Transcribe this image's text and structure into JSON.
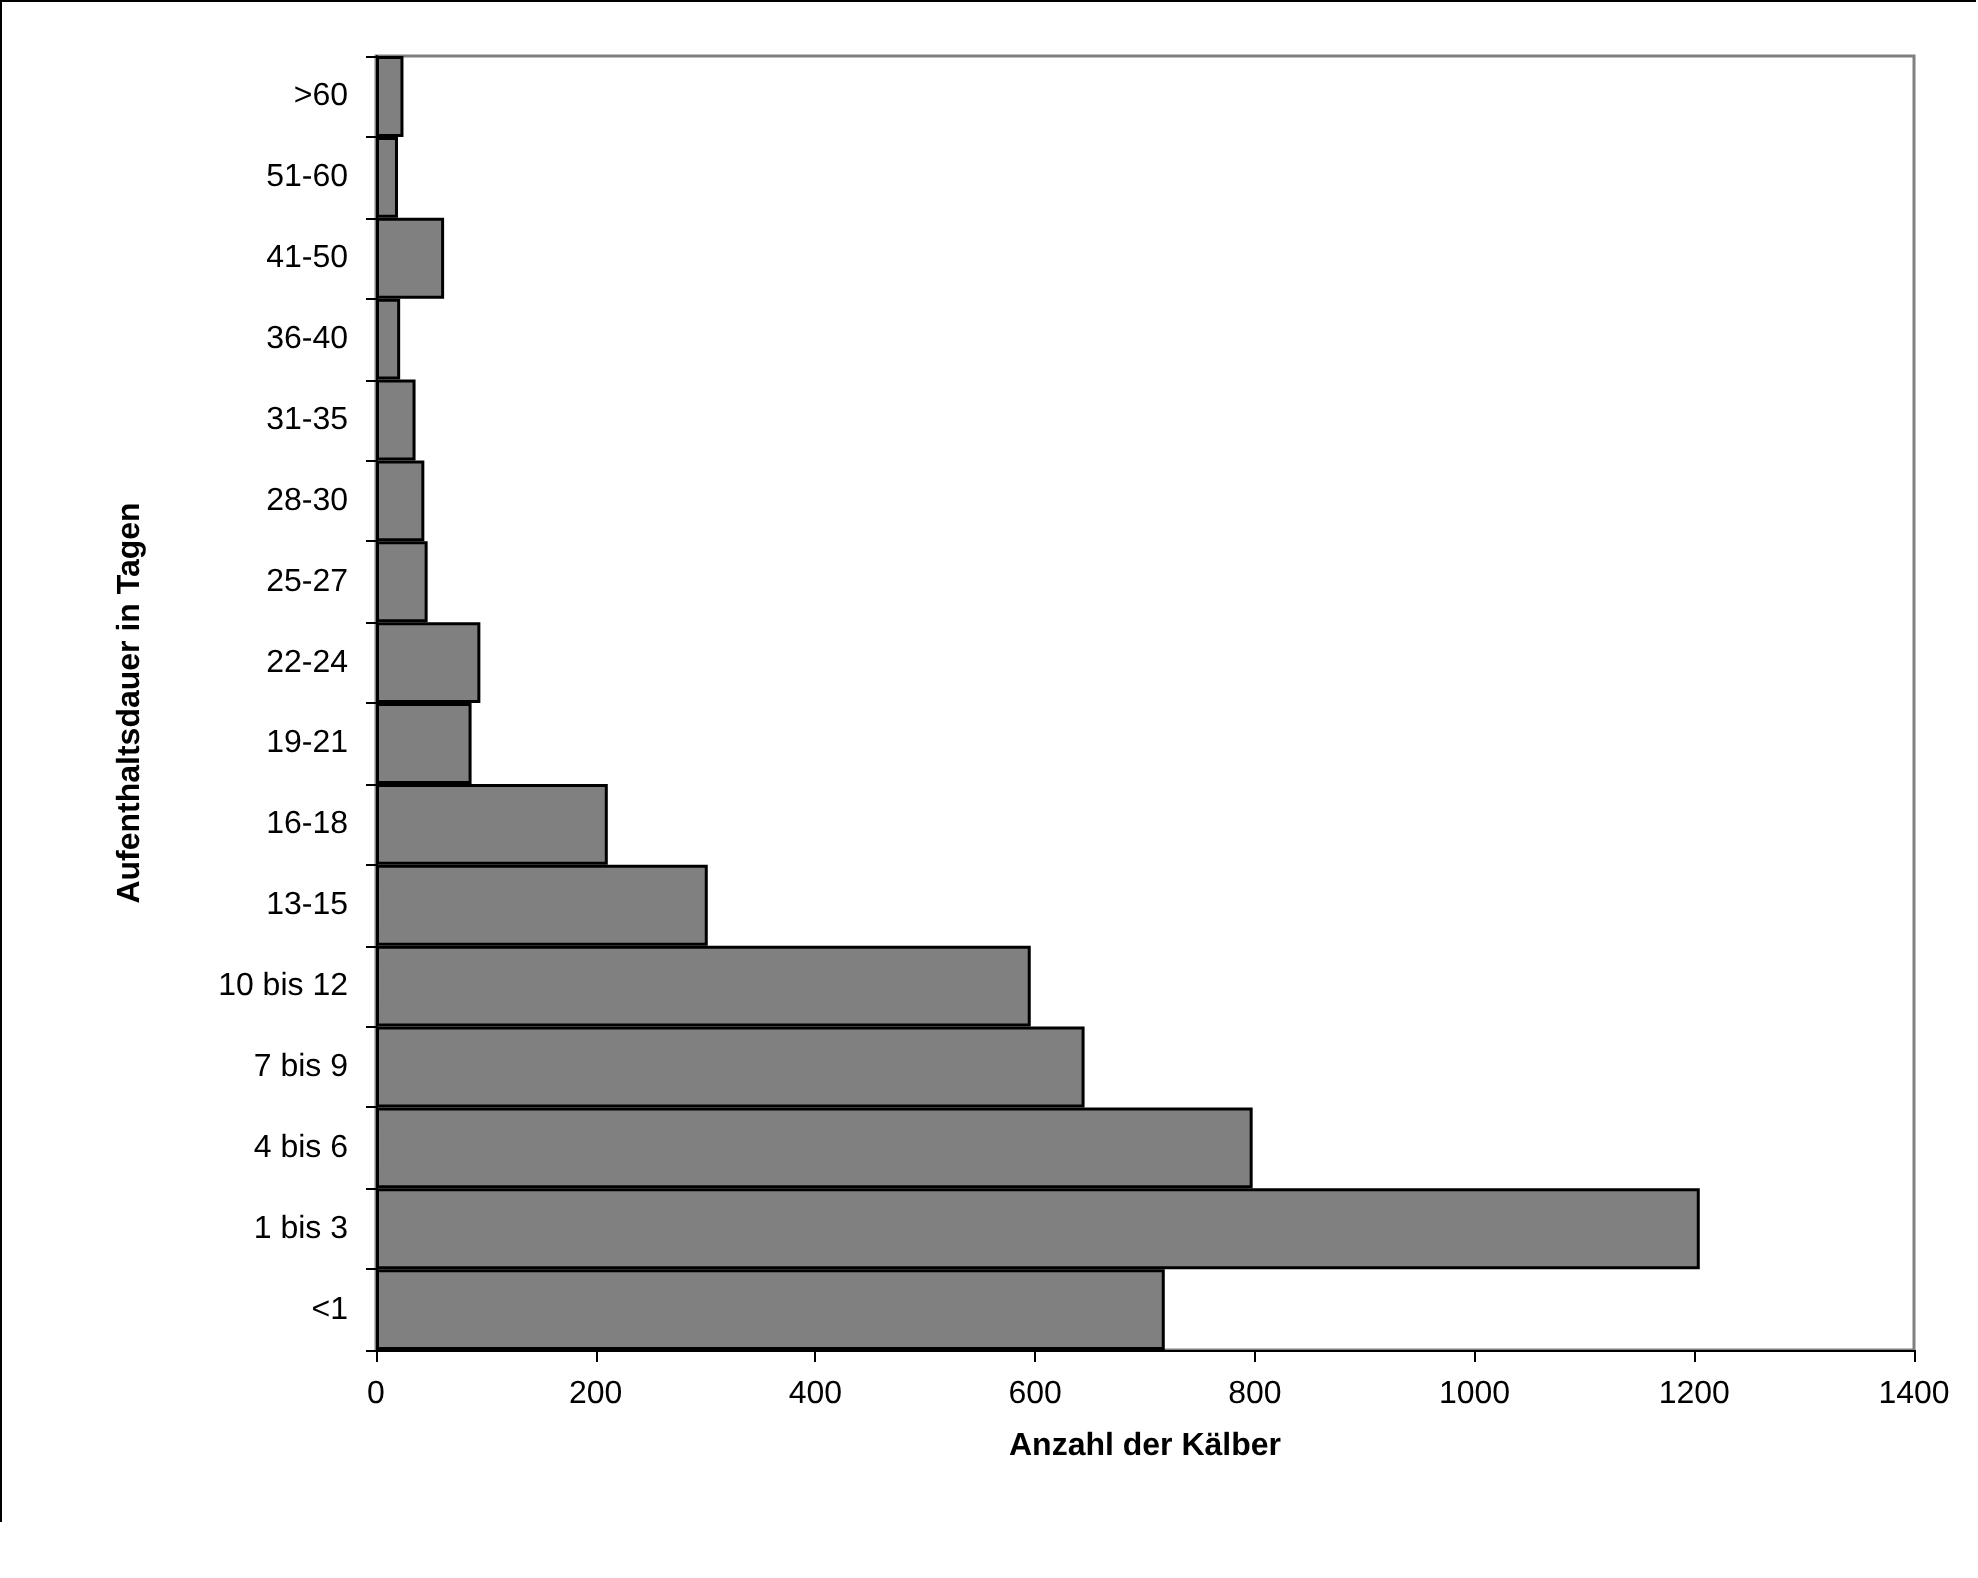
{
  "chart_data": {
    "type": "bar",
    "orientation": "horizontal",
    "xlabel": "Anzahl der Kälber",
    "ylabel": "Aufenthaltsdauer in Tagen",
    "categories": [
      ">60",
      "51-60",
      "41-50",
      "36-40",
      "31-35",
      "28-30",
      "25-27",
      "22-24",
      "19-21",
      "16-18",
      "13-15",
      "10 bis 12",
      "7 bis 9",
      "4 bis 6",
      "1 bis 3",
      "<1"
    ],
    "values": [
      25,
      20,
      62,
      22,
      36,
      44,
      47,
      95,
      87,
      211,
      302,
      596,
      645,
      798,
      1205,
      718
    ],
    "color": "#808080",
    "xlim": [
      0,
      1400
    ],
    "xticks": [
      0,
      200,
      400,
      600,
      800,
      1000,
      1200,
      1400
    ],
    "grid": false
  }
}
